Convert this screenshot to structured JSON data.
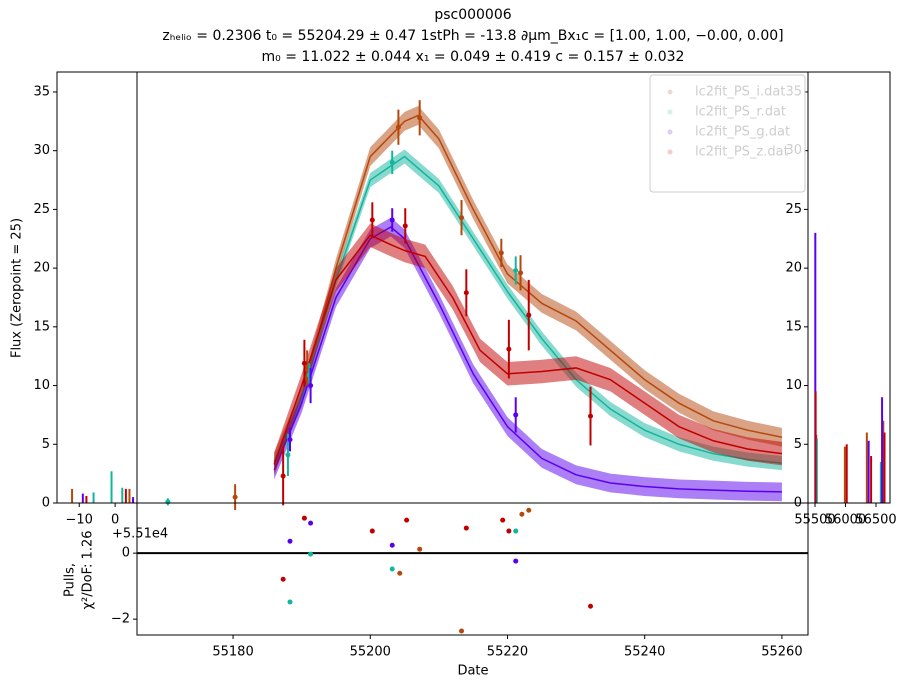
{
  "chart_data": [
    {
      "type": "line",
      "title": "psc000006",
      "subtitle": [
        "zₕₑₗᵢₒ = 0.2306 t₀ = 55204.29 ± 0.47 1stPh = -13.8 ∂μm_Bx₁c = [1.00,  1.00,  −0.00,  0.00]",
        "m₀ = 11.022 ± 0.044 x₁ = 0.049 ± 0.419 c = 0.157 ± 0.032"
      ],
      "ylabel": "Flux (Zeropoint = 25)",
      "xlim": [
        55166,
        55263.8
      ],
      "ylim": [
        0,
        36.7
      ],
      "legend": "upper right",
      "series": [
        {
          "name": "lc2fit_PS_i.dat",
          "color": "#b5480c",
          "model_x": [
            55186,
            55190,
            55195,
            55200,
            55205,
            55207,
            55210,
            55215,
            55220,
            55225,
            55230,
            55235,
            55240,
            55245,
            55250,
            55255,
            55260
          ],
          "model": [
            3.5,
            9,
            20,
            29.5,
            32.5,
            33,
            31,
            25,
            19.5,
            17,
            15.5,
            13,
            10.5,
            8.5,
            7,
            6.2,
            5.6
          ],
          "model_err": 0.8,
          "x": [
            55180.3,
            55190.8,
            55204.1,
            55207.2,
            55213.3,
            55219.1,
            55221.9
          ],
          "values": [
            0.5,
            11.5,
            32.0,
            32.8,
            24.3,
            21.3,
            19.6
          ],
          "errors": [
            1.1,
            1.5,
            1.5,
            1.5,
            1.5,
            1.2,
            1.5
          ]
        },
        {
          "name": "lc2fit_PS_r.dat",
          "color": "#13b59e",
          "model_x": [
            55186,
            55190,
            55195,
            55200,
            55205,
            55210,
            55215,
            55220,
            55225,
            55230,
            55235,
            55240,
            55245,
            55250,
            55255,
            55260
          ],
          "model": [
            3.2,
            9,
            19,
            27.5,
            29.5,
            27,
            22.5,
            18,
            14,
            10.5,
            8,
            6.2,
            5,
            4.2,
            3.7,
            3.4
          ],
          "model_err": 0.6,
          "x": [
            55170.5,
            55188.0,
            55191.1,
            55203.2,
            55221.2
          ],
          "values": [
            0.1,
            4.1,
            10.9,
            29.0,
            19.8
          ],
          "errors": [
            0.3,
            1.8,
            1.0,
            1.0,
            1.2
          ]
        },
        {
          "name": "lc2fit_PS_g.dat",
          "color": "#5a00f0",
          "model_x": [
            55186,
            55190,
            55195,
            55200,
            55203,
            55205,
            55210,
            55215,
            55220,
            55225,
            55230,
            55235,
            55240,
            55245,
            55250,
            55255,
            55260
          ],
          "model": [
            2.8,
            8.5,
            17.5,
            22.5,
            23.5,
            22.5,
            17,
            11,
            6.5,
            3.8,
            2.4,
            1.7,
            1.4,
            1.2,
            1.1,
            1.0,
            0.95
          ],
          "model_err": 0.8,
          "x": [
            55188.3,
            55191.3,
            55203.2,
            55221.2
          ],
          "values": [
            5.4,
            10.0,
            24.1,
            7.5
          ],
          "errors": [
            1.0,
            1.5,
            1.0,
            1.5
          ]
        },
        {
          "name": "lc2fit_PS_z.dat",
          "color": "#c00000",
          "model_x": [
            55186,
            55190,
            55195,
            55200,
            55203,
            55205,
            55208,
            55212,
            55216,
            55220,
            55225,
            55230,
            55235,
            55240,
            55245,
            55250,
            55255,
            55260
          ],
          "model": [
            3.3,
            10,
            19,
            22.8,
            22,
            21.5,
            21,
            17.5,
            13,
            11,
            11.2,
            11.5,
            10.5,
            8.5,
            6.5,
            5.3,
            4.6,
            4.2
          ],
          "model_err": 1.0,
          "x": [
            55187.3,
            55190.4,
            55200.3,
            55205.1,
            55214.0,
            55220.2,
            55223.1,
            55232.1
          ],
          "values": [
            2.3,
            11.9,
            24.1,
            23.6,
            17.9,
            13.1,
            16.0,
            7.4
          ],
          "errors": [
            2.5,
            2.0,
            1.5,
            1.5,
            2.0,
            2.5,
            3.0,
            2.5
          ]
        }
      ]
    },
    {
      "type": "scatter",
      "ylabel": [
        "Pulls,",
        "χ²/DoF: 1.26"
      ],
      "xlabel": "Date",
      "xlim": [
        55166,
        55263.8
      ],
      "ylim": [
        -2.48,
        1.52
      ],
      "xticks": [
        55180,
        55200,
        55220,
        55240,
        55260
      ],
      "yticks": [
        {
          "value": -2,
          "label": "−2"
        },
        0
      ],
      "series": [
        {
          "color": "#b5480c",
          "x": [
            55204.3,
            55207.2,
            55213.3,
            55222.1,
            55223.1
          ],
          "values": [
            -0.61,
            0.12,
            -2.36,
            1.18,
            1.3
          ]
        },
        {
          "color": "#13b59e",
          "x": [
            55188.3,
            55191.3,
            55203.2,
            55221.2
          ],
          "values": [
            -1.48,
            -0.03,
            -0.48,
            0.67
          ]
        },
        {
          "color": "#5a00f0",
          "x": [
            55188.3,
            55191.3,
            55203.2,
            55221.2
          ],
          "values": [
            0.36,
            0.91,
            0.24,
            -0.24
          ]
        },
        {
          "color": "#c00000",
          "x": [
            55187.3,
            55190.4,
            55200.3,
            55205.3,
            55214.0,
            55219.3,
            55220.2,
            55232.1
          ],
          "values": [
            -0.79,
            1.06,
            0.67,
            1.0,
            0.76,
            1.0,
            0.67,
            -1.61
          ]
        }
      ]
    },
    {
      "type": "vlines",
      "offset_label": "+5.51e4",
      "xlim": [
        -16.2,
        6.1
      ],
      "ylim": [
        0,
        36.7
      ],
      "xticks": [
        {
          "value": -10,
          "label": "−10"
        },
        0
      ],
      "yticks": [
        0,
        5,
        10,
        15,
        20,
        25,
        30,
        35
      ],
      "series": [
        {
          "color": "#b5480c",
          "x": [
            -12,
            4
          ],
          "values": [
            1.2,
            1.2
          ]
        },
        {
          "color": "#13b59e",
          "x": [
            -6,
            -1,
            2
          ],
          "values": [
            0.9,
            2.7,
            1.3
          ]
        },
        {
          "color": "#5a00f0",
          "x": [
            -9,
            5
          ],
          "values": [
            0.8,
            0.5
          ]
        },
        {
          "color": "#c00000",
          "x": [
            -8,
            3
          ],
          "values": [
            0.6,
            1.2
          ]
        }
      ]
    },
    {
      "type": "vlines",
      "xlim": [
        55385,
        56730
      ],
      "ylim": [
        0,
        36.7
      ],
      "xticks": [
        55500,
        56000,
        56500
      ],
      "yticks": [
        0,
        5,
        10,
        15,
        20,
        25,
        30,
        35
      ],
      "series": [
        {
          "color": "#b5480c",
          "x": [
            55520,
            55990,
            56350,
            56620
          ],
          "values": [
            5.8,
            4.8,
            6,
            7
          ]
        },
        {
          "color": "#13b59e",
          "x": [
            55530,
            56580
          ],
          "values": [
            5.5,
            3.5
          ]
        },
        {
          "color": "#5a00f0",
          "x": [
            55505,
            56380,
            56600
          ],
          "values": [
            23,
            5.3,
            9
          ]
        },
        {
          "color": "#c00000",
          "x": [
            55510,
            56020,
            56420,
            56640
          ],
          "values": [
            9.5,
            5,
            4,
            6
          ]
        }
      ]
    }
  ]
}
